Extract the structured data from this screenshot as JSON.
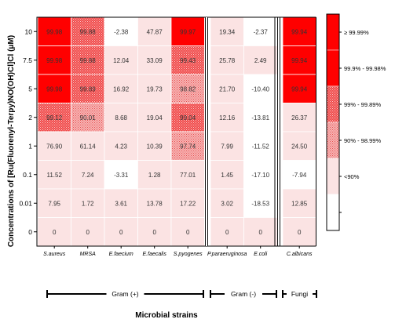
{
  "chart_data": {
    "type": "heatmap",
    "ylabel": "Concentrations of [Ru(Fluorenyl-Terpy)NO(OH)Cl]Cl (μM)",
    "xlabel": "Microbial strains",
    "rows": [
      "10",
      "7.5",
      "5",
      "2",
      "1",
      "0.1",
      "0.01",
      "0"
    ],
    "columns": [
      "S.aureus",
      "MRSA",
      "E.faecium",
      "E.faecalis",
      "S.pyogenes",
      "P.paraeruginosa",
      "E.coli",
      "C.albicans"
    ],
    "values": [
      [
        99.98,
        99.88,
        -2.38,
        47.87,
        99.97,
        19.34,
        -2.37,
        99.94
      ],
      [
        99.98,
        99.88,
        12.04,
        33.09,
        99.43,
        25.78,
        2.49,
        99.94
      ],
      [
        99.98,
        99.89,
        16.92,
        19.73,
        98.82,
        21.7,
        -10.4,
        99.94
      ],
      [
        99.12,
        90.01,
        8.68,
        19.04,
        99.04,
        12.16,
        -13.81,
        26.37
      ],
      [
        76.9,
        61.14,
        4.23,
        10.39,
        97.74,
        7.99,
        -11.52,
        24.5
      ],
      [
        11.52,
        7.24,
        -3.31,
        1.28,
        77.01,
        1.45,
        -17.1,
        -7.94
      ],
      [
        7.95,
        1.72,
        3.61,
        13.78,
        17.22,
        3.02,
        -18.53,
        12.85
      ],
      [
        0,
        0,
        0,
        0,
        0,
        0,
        0,
        0
      ]
    ],
    "value_labels": [
      [
        "99.98",
        "99.88",
        "-2.38",
        "47.87",
        "99.97",
        "19.34",
        "-2.37",
        "99.94"
      ],
      [
        "99.98",
        "99.88",
        "12.04",
        "33.09",
        "99.43",
        "25.78",
        "2.49",
        "99.94"
      ],
      [
        "99.98",
        "99.89",
        "16.92",
        "19.73",
        "98.82",
        "21.70",
        "-10.40",
        "99.94"
      ],
      [
        "99.12",
        "90.01",
        "8.68",
        "19.04",
        "99.04",
        "12.16",
        "-13.81",
        "26.37"
      ],
      [
        "76.90",
        "61.14",
        "4.23",
        "10.39",
        "97.74",
        "7.99",
        "-11.52",
        "24.50"
      ],
      [
        "11.52",
        "7.24",
        "-3.31",
        "1.28",
        "77.01",
        "1.45",
        "-17.10",
        "-7.94"
      ],
      [
        "7.95",
        "1.72",
        "3.61",
        "13.78",
        "17.22",
        "3.02",
        "-18.53",
        "12.85"
      ],
      [
        "0",
        "0",
        "0",
        "0",
        "0",
        "0",
        "0",
        "0"
      ]
    ],
    "groups": [
      {
        "label": "Gram (+)",
        "columns": [
          "S.aureus",
          "MRSA",
          "E.faecium",
          "E.faecalis",
          "S.pyogenes"
        ]
      },
      {
        "label": "Gram (-)",
        "columns": [
          "P.paraeruginosa",
          "E.coli"
        ]
      },
      {
        "label": "Fungi",
        "columns": [
          "C.albicans"
        ]
      }
    ],
    "legend": {
      "placement": "right",
      "bins": [
        {
          "label": "≥ 99.99%",
          "color": "#ff0000",
          "pattern": "solid"
        },
        {
          "label": "99.9% - 99.98%",
          "color": "#ff0000",
          "pattern": "solid"
        },
        {
          "label": "99% - 99.89%",
          "color": "#f06a6a",
          "pattern": "dotted"
        },
        {
          "label": "90% - 98.99%",
          "color": "#f7a6a6",
          "pattern": "dotted"
        },
        {
          "label": "<90%",
          "color": "#fbe3e3",
          "pattern": "solid"
        },
        {
          "label": "",
          "color": "#ffffff",
          "pattern": "solid"
        }
      ]
    },
    "colors": {
      "solid_red": "#ff0000",
      "dotted_dark": "#f04a4a",
      "dotted_light": "#f6a0a0",
      "low": "#fbe3e3",
      "negative": "#ffffff"
    },
    "grid": true
  }
}
